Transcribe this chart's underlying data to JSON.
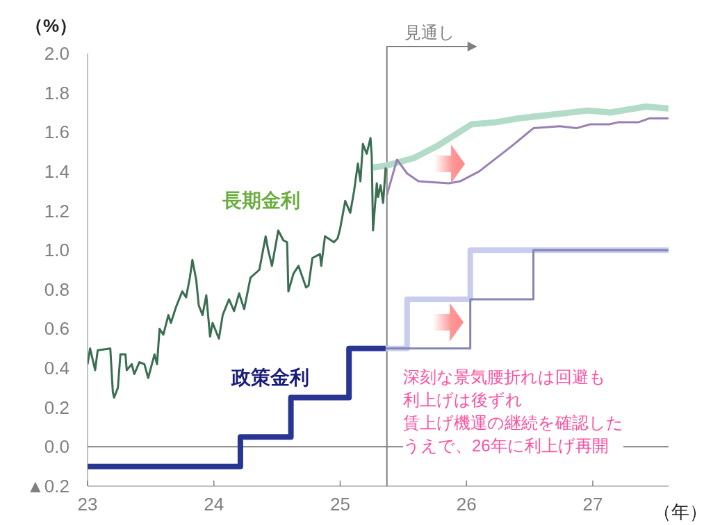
{
  "chart_data": {
    "type": "line",
    "ylabel": "（%）",
    "xlabel": "（年）",
    "xlim": [
      23,
      27.6
    ],
    "xticks": [
      23,
      24,
      25,
      26,
      27
    ],
    "ylim": [
      -0.2,
      2.0
    ],
    "yticks": [
      {
        "value": -0.2,
        "label": "▲0.2"
      },
      {
        "value": 0,
        "label": "0.0"
      },
      {
        "value": 0.2,
        "label": "0.2"
      },
      {
        "value": 0.4,
        "label": "0.4"
      },
      {
        "value": 0.6,
        "label": "0.6"
      },
      {
        "value": 0.8,
        "label": "0.8"
      },
      {
        "value": 1.0,
        "label": "1.0"
      },
      {
        "value": 1.2,
        "label": "1.2"
      },
      {
        "value": 1.4,
        "label": "1.4"
      },
      {
        "value": 1.6,
        "label": "1.6"
      },
      {
        "value": 1.8,
        "label": "1.8"
      },
      {
        "value": 2.0,
        "label": "2.0"
      }
    ],
    "grid": false,
    "legend": false,
    "marker": "none",
    "line_style": "solid",
    "series": [
      {
        "type": "line",
        "color": "#b3dcc8",
        "x": [
          25.26,
          25.37,
          25.59,
          25.77,
          26.04,
          26.23,
          26.41,
          26.69,
          26.96,
          27.14,
          27.42,
          27.6
        ],
        "values": [
          1.42,
          1.43,
          1.47,
          1.53,
          1.64,
          1.65,
          1.67,
          1.69,
          1.71,
          1.7,
          1.73,
          1.72
        ]
      },
      {
        "type": "line",
        "color": "#9a7fb5",
        "x": [
          25.37,
          25.45,
          25.53,
          25.62,
          25.86,
          25.95,
          26.1,
          26.36,
          26.53,
          26.74,
          26.87,
          26.98,
          27.13,
          27.2,
          27.36,
          27.45,
          27.6
        ],
        "values": [
          1.28,
          1.46,
          1.39,
          1.35,
          1.34,
          1.35,
          1.4,
          1.53,
          1.62,
          1.63,
          1.62,
          1.64,
          1.64,
          1.65,
          1.65,
          1.67,
          1.67
        ]
      },
      {
        "type": "line",
        "name": "長期金利",
        "color": "#3a6e50",
        "x": [
          23.0,
          23.02,
          23.06,
          23.08,
          23.18,
          23.2,
          23.21,
          23.24,
          23.26,
          23.3,
          23.31,
          23.35,
          23.37,
          23.41,
          23.45,
          23.48,
          23.53,
          23.55,
          23.57,
          23.6,
          23.64,
          23.66,
          23.7,
          23.75,
          23.78,
          23.81,
          23.83,
          23.86,
          23.88,
          23.91,
          23.94,
          23.97,
          23.99,
          24.04,
          24.07,
          24.12,
          24.16,
          24.2,
          24.24,
          24.29,
          24.36,
          24.41,
          24.43,
          24.46,
          24.51,
          24.55,
          24.58,
          24.59,
          24.63,
          24.67,
          24.73,
          24.75,
          24.78,
          24.84,
          24.85,
          24.88,
          24.95,
          24.98,
          25.0,
          25.02,
          25.04,
          25.08,
          25.11,
          25.14,
          25.16,
          25.18,
          25.21,
          25.24,
          25.25,
          25.26,
          25.29,
          25.3,
          25.32,
          25.34,
          25.36
        ],
        "values": [
          0.42,
          0.5,
          0.39,
          0.49,
          0.5,
          0.28,
          0.25,
          0.3,
          0.47,
          0.47,
          0.39,
          0.42,
          0.37,
          0.43,
          0.42,
          0.35,
          0.47,
          0.42,
          0.6,
          0.57,
          0.67,
          0.63,
          0.71,
          0.79,
          0.76,
          0.86,
          0.95,
          0.85,
          0.72,
          0.67,
          0.77,
          0.56,
          0.63,
          0.55,
          0.67,
          0.75,
          0.69,
          0.78,
          0.7,
          0.86,
          0.9,
          1.07,
          1.0,
          0.92,
          1.1,
          1.05,
          1.04,
          0.79,
          0.88,
          0.92,
          0.81,
          0.82,
          0.96,
          0.98,
          0.92,
          1.07,
          1.04,
          1.06,
          1.11,
          1.18,
          1.25,
          1.19,
          1.3,
          1.44,
          1.35,
          1.54,
          1.49,
          1.57,
          1.48,
          1.1,
          1.34,
          1.27,
          1.33,
          1.24,
          1.42
        ]
      },
      {
        "type": "step",
        "color": "#c8ccef",
        "x": [
          25.36,
          25.53,
          26.03,
          27.6
        ],
        "values": [
          0.5,
          0.75,
          1.0,
          1.0
        ]
      },
      {
        "type": "step",
        "color": "#8585b5",
        "x": [
          25.36,
          26.03,
          26.53,
          27.6
        ],
        "values": [
          0.5,
          0.75,
          1.0,
          1.0
        ]
      },
      {
        "type": "step",
        "name": "政策金利",
        "color": "#283593",
        "x": [
          23.0,
          24.21,
          24.61,
          25.07,
          25.36
        ],
        "values": [
          -0.1,
          0.05,
          0.25,
          0.5,
          0.5
        ]
      }
    ],
    "ref_lines": [
      {
        "axis": "x",
        "value": 25.37,
        "label": "見通し",
        "color": "#808080"
      },
      {
        "axis": "y",
        "value": 0,
        "label": null,
        "color": "#808080"
      }
    ],
    "annotations": [
      "深刻な景気腰折れは回避も",
      "利上げは後ずれ",
      "賃上げ機運の継続を確認した",
      "うえで、26年に利上げ再開"
    ]
  }
}
